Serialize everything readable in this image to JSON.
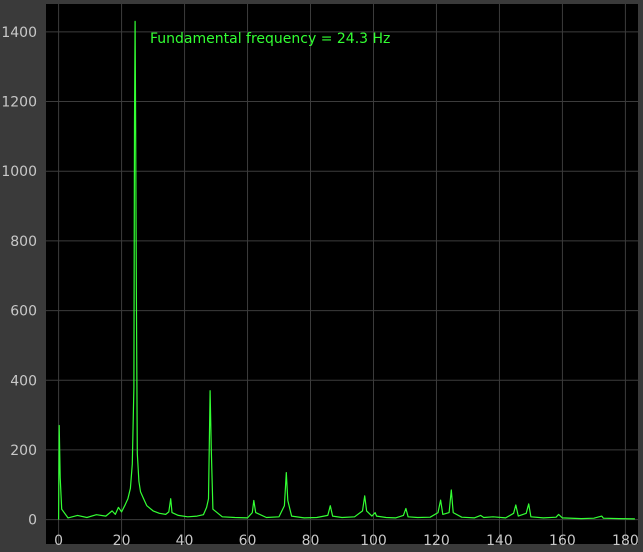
{
  "chart_data": {
    "type": "line",
    "title": "",
    "xlabel": "",
    "ylabel": "",
    "xlim": [
      -4,
      184
    ],
    "ylim": [
      -70,
      1480
    ],
    "x_ticks": [
      0,
      20,
      40,
      60,
      80,
      100,
      120,
      140,
      160,
      180
    ],
    "y_ticks": [
      0,
      200,
      400,
      600,
      800,
      1000,
      1200,
      1400
    ],
    "grid": true,
    "legend": "none",
    "annotation": "Fundamental frequency =  24.3 Hz",
    "colors": {
      "background": "#000000",
      "frame": "#3a3a3a",
      "grid": "#3c3c3c",
      "line": "#33ff33",
      "tick_text": "#c8c8c8"
    },
    "series": [
      {
        "points": [
          [
            0,
            0
          ],
          [
            0.2,
            270
          ],
          [
            0.5,
            120
          ],
          [
            1,
            30
          ],
          [
            3,
            5
          ],
          [
            6,
            12
          ],
          [
            9,
            6
          ],
          [
            12,
            14
          ],
          [
            15,
            10
          ],
          [
            17,
            25
          ],
          [
            18,
            15
          ],
          [
            19,
            35
          ],
          [
            20,
            22
          ],
          [
            21,
            40
          ],
          [
            22,
            60
          ],
          [
            22.8,
            90
          ],
          [
            23.4,
            160
          ],
          [
            23.9,
            380
          ],
          [
            24.1,
            1140
          ],
          [
            24.3,
            1430
          ],
          [
            24.5,
            1100
          ],
          [
            24.7,
            640
          ],
          [
            25,
            190
          ],
          [
            25.5,
            110
          ],
          [
            26,
            80
          ],
          [
            27,
            60
          ],
          [
            28,
            40
          ],
          [
            30,
            25
          ],
          [
            32,
            18
          ],
          [
            34,
            15
          ],
          [
            35,
            22
          ],
          [
            35.6,
            60
          ],
          [
            36,
            20
          ],
          [
            38,
            12
          ],
          [
            41,
            8
          ],
          [
            44,
            10
          ],
          [
            46,
            14
          ],
          [
            47,
            35
          ],
          [
            47.6,
            60
          ],
          [
            48.1,
            370
          ],
          [
            48.5,
            200
          ],
          [
            49,
            30
          ],
          [
            52,
            8
          ],
          [
            56,
            6
          ],
          [
            60,
            5
          ],
          [
            61.5,
            20
          ],
          [
            62,
            55
          ],
          [
            62.6,
            20
          ],
          [
            66,
            6
          ],
          [
            70,
            8
          ],
          [
            71.7,
            40
          ],
          [
            72.3,
            135
          ],
          [
            72.8,
            55
          ],
          [
            74,
            10
          ],
          [
            78,
            5
          ],
          [
            82,
            6
          ],
          [
            85.5,
            12
          ],
          [
            86.3,
            40
          ],
          [
            87,
            10
          ],
          [
            90,
            6
          ],
          [
            94,
            8
          ],
          [
            96.5,
            25
          ],
          [
            97.2,
            68
          ],
          [
            97.8,
            25
          ],
          [
            99.5,
            10
          ],
          [
            100.5,
            20
          ],
          [
            101,
            10
          ],
          [
            104,
            6
          ],
          [
            107,
            5
          ],
          [
            109.5,
            12
          ],
          [
            110.3,
            32
          ],
          [
            111,
            8
          ],
          [
            114,
            6
          ],
          [
            118,
            7
          ],
          [
            120.5,
            20
          ],
          [
            121.3,
            56
          ],
          [
            122,
            15
          ],
          [
            124,
            20
          ],
          [
            124.7,
            85
          ],
          [
            125.3,
            20
          ],
          [
            128,
            7
          ],
          [
            132,
            5
          ],
          [
            134,
            12
          ],
          [
            135,
            6
          ],
          [
            138,
            8
          ],
          [
            142,
            5
          ],
          [
            144.5,
            18
          ],
          [
            145.2,
            42
          ],
          [
            146,
            10
          ],
          [
            148.5,
            18
          ],
          [
            149.3,
            45
          ],
          [
            150,
            8
          ],
          [
            154,
            5
          ],
          [
            158,
            7
          ],
          [
            158.8,
            15
          ],
          [
            160,
            5
          ],
          [
            166,
            3
          ],
          [
            170,
            4
          ],
          [
            172.5,
            10
          ],
          [
            173,
            4
          ],
          [
            178,
            3
          ],
          [
            183,
            2
          ]
        ]
      }
    ]
  }
}
